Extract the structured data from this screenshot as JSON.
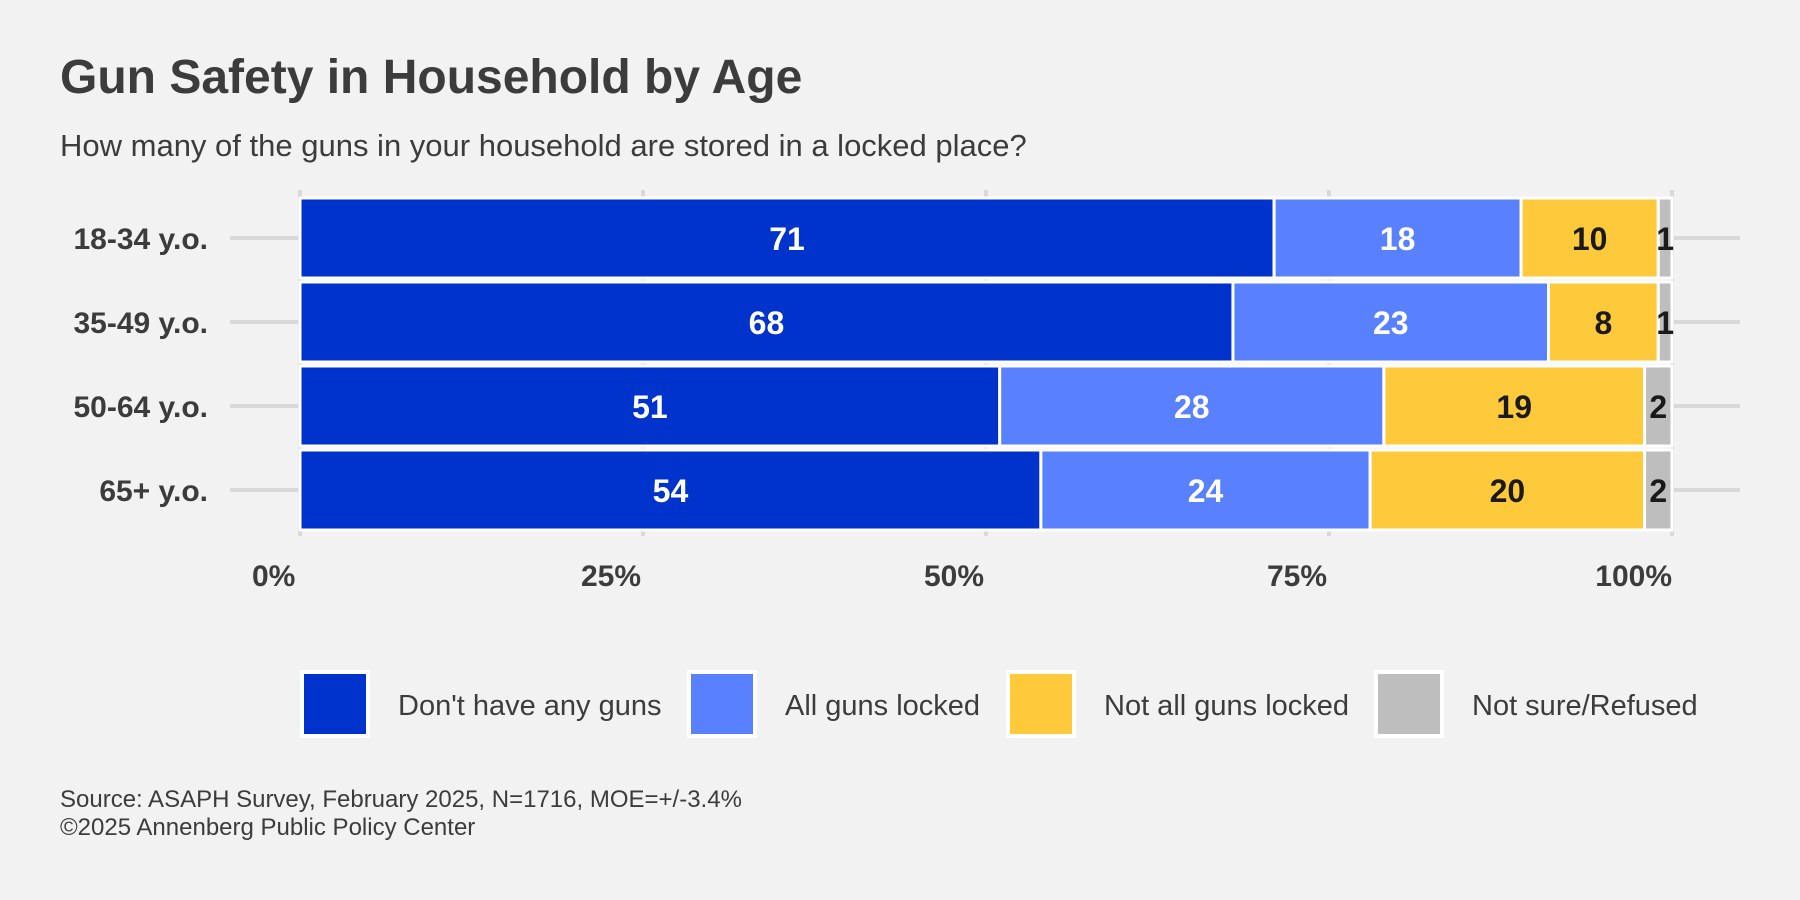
{
  "title": "Gun Safety in Household by Age",
  "subtitle": "How many of the guns in your household are stored in a locked place?",
  "source_line": "Source: ASAPH Survey, February 2025, N=1716, MOE=+/-3.4%",
  "copyright_line": "©2025 Annenberg Public Policy Center",
  "colors": {
    "background": "#f2f2f2",
    "text": "#3c3c3c",
    "gridline": "#d9d9d9"
  },
  "chart_data": {
    "type": "bar",
    "orientation": "horizontal",
    "stacked": true,
    "title": "Gun Safety in Household by Age",
    "subtitle": "How many of the guns in your household are stored in a locked place?",
    "categories": [
      "18-34 y.o.",
      "35-49 y.o.",
      "50-64 y.o.",
      "65+ y.o."
    ],
    "series": [
      {
        "name": "Don't have any guns",
        "color": "#0033cc",
        "label_color": "#ffffff",
        "values": [
          71,
          68,
          51,
          54
        ]
      },
      {
        "name": "All guns locked",
        "color": "#5880ff",
        "label_color": "#ffffff",
        "values": [
          18,
          23,
          28,
          24
        ]
      },
      {
        "name": "Not all guns locked",
        "color": "#ffc93c",
        "label_color": "#1a1a1a",
        "values": [
          10,
          8,
          19,
          20
        ]
      },
      {
        "name": "Not sure/Refused",
        "color": "#bebebe",
        "label_color": "#1a1a1a",
        "values": [
          1,
          1,
          2,
          2
        ]
      }
    ],
    "x_ticks": [
      "0%",
      "25%",
      "50%",
      "75%",
      "100%"
    ],
    "xlim": [
      0,
      100
    ],
    "xlabel": "",
    "ylabel": "",
    "legend_position": "bottom",
    "grid": true
  }
}
